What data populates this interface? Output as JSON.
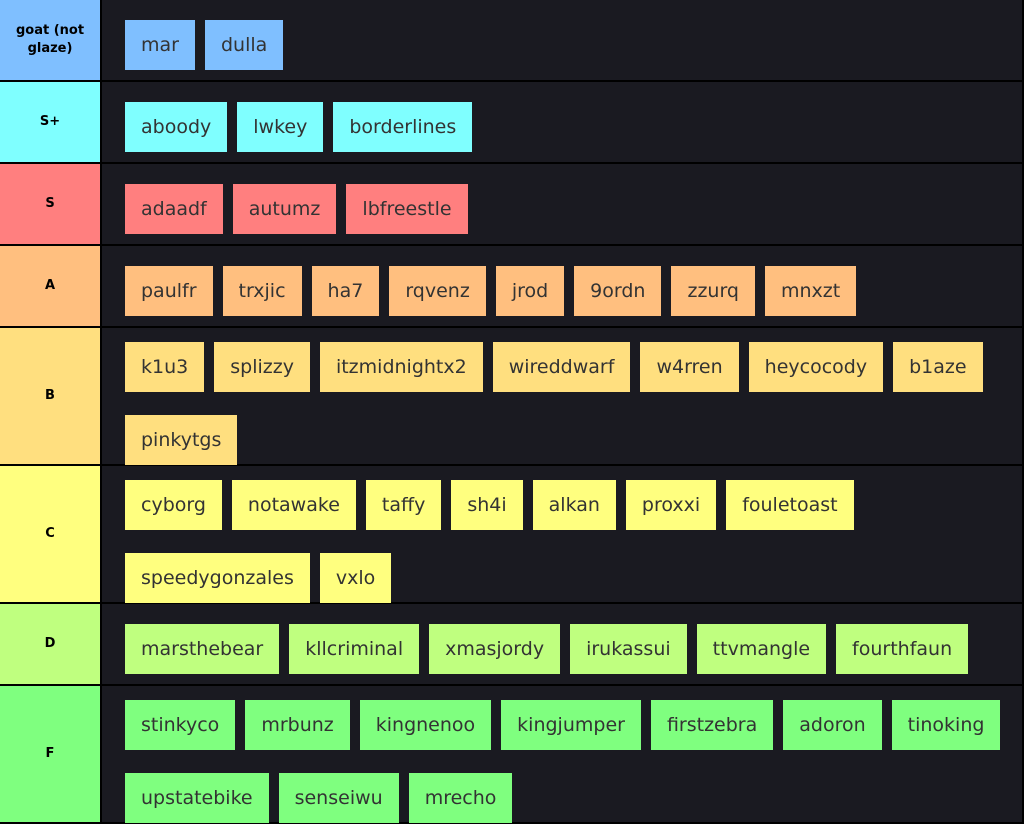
{
  "tiers": [
    {
      "label": "goat (not glaze)",
      "color": "#7fbfff",
      "items": [
        "mar",
        "dulla"
      ]
    },
    {
      "label": "S+",
      "color": "#7fffff",
      "items": [
        "aboody",
        "lwkey",
        "borderlines"
      ]
    },
    {
      "label": "S",
      "color": "#ff7f7f",
      "items": [
        "adaadf",
        "autumz",
        "lbfreestle"
      ]
    },
    {
      "label": "A",
      "color": "#ffbf7f",
      "items": [
        "paulfr",
        "trxjic",
        "ha7",
        "rqvenz",
        "jrod",
        "9ordn",
        "zzurq",
        "mnxzt"
      ]
    },
    {
      "label": "B",
      "color": "#ffdf7f",
      "items": [
        "k1u3",
        "splizzy",
        "itzmidnightx2",
        "wireddwarf",
        "w4rren",
        "heycocody",
        "b1aze",
        "pinkytgs"
      ]
    },
    {
      "label": "C",
      "color": "#ffff7f",
      "items": [
        "cyborg",
        "notawake",
        "taffy",
        "sh4i",
        "alkan",
        "proxxi",
        "fouletoast",
        "speedygonzales",
        "vxlo"
      ]
    },
    {
      "label": "D",
      "color": "#bfff7f",
      "items": [
        "marsthebear",
        "kllcriminal",
        "xmasjordy",
        "irukassui",
        "ttvmangle",
        "fourthfaun"
      ]
    },
    {
      "label": "F",
      "color": "#7fff7f",
      "items": [
        "stinkyco",
        "mrbunz",
        "kingnenoo",
        "kingjumper",
        "firstzebra",
        "adoron",
        "tinoking",
        "upstatebike",
        "senseiwu",
        "mrecho"
      ]
    }
  ]
}
